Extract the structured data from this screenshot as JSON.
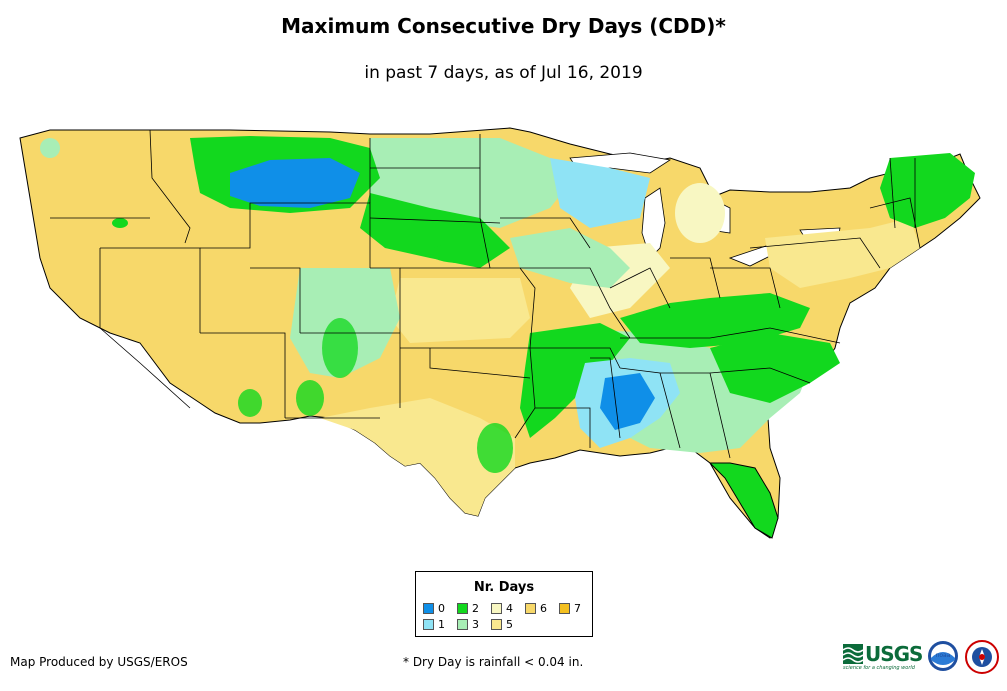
{
  "title": "Maximum Consecutive Dry Days (CDD)*",
  "subtitle": "in past 7 days, as of Jul 16, 2019",
  "legend": {
    "title": "Nr. Days",
    "items": [
      {
        "label": "0",
        "color": "#0f8fe8"
      },
      {
        "label": "1",
        "color": "#8fe3f5"
      },
      {
        "label": "2",
        "color": "#12d81e"
      },
      {
        "label": "3",
        "color": "#a8eeb5"
      },
      {
        "label": "4",
        "color": "#f8f7c2"
      },
      {
        "label": "5",
        "color": "#f9e88f"
      },
      {
        "label": "6",
        "color": "#f7d86a"
      },
      {
        "label": "7",
        "color": "#f4c020"
      }
    ]
  },
  "footer": {
    "producer": "Map Produced by USGS/EROS",
    "note": "* Dry Day is rainfall < 0.04 in."
  },
  "logos": {
    "usgs": "USGS",
    "usgs_tagline": "science for a changing world",
    "noaa": "noaa"
  }
}
